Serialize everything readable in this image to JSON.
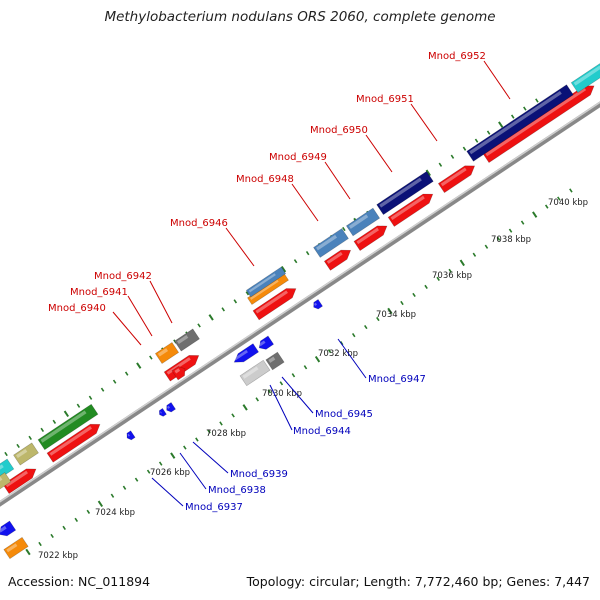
{
  "title": "Methylobacterium nodulans ORS 2060, complete genome",
  "footer": {
    "accession": "Accession: NC_011894",
    "summary": "Topology: circular; Length: 7,772,460 bp; Genes: 7,447"
  },
  "colors": {
    "red": "#ee1111",
    "navy": "#0a1177",
    "steel": "#4a82bb",
    "orange": "#f58a0a",
    "gray": "#6f6f6f",
    "light_gray": "#cccccc",
    "blue": "#1111ee",
    "green": "#228b22",
    "khaki": "#bdb76b",
    "cyan": "#22cccc",
    "tick": "#2b7a2b",
    "label_red": "#cc0000",
    "label_blue": "#0000bb"
  },
  "ticks": [
    "7022 kbp",
    "7024 kbp",
    "7026 kbp",
    "7028 kbp",
    "7030 kbp",
    "7032 kbp",
    "7034 kbp",
    "7036 kbp",
    "7038 kbp",
    "7040 kbp"
  ],
  "labels_forward": [
    "Mnod_6940",
    "Mnod_6941",
    "Mnod_6942",
    "Mnod_6946",
    "Mnod_6948",
    "Mnod_6949",
    "Mnod_6950",
    "Mnod_6951",
    "Mnod_6952"
  ],
  "labels_reverse": [
    "Mnod_6937",
    "Mnod_6938",
    "Mnod_6939",
    "Mnod_6944",
    "Mnod_6945",
    "Mnod_6947"
  ]
}
